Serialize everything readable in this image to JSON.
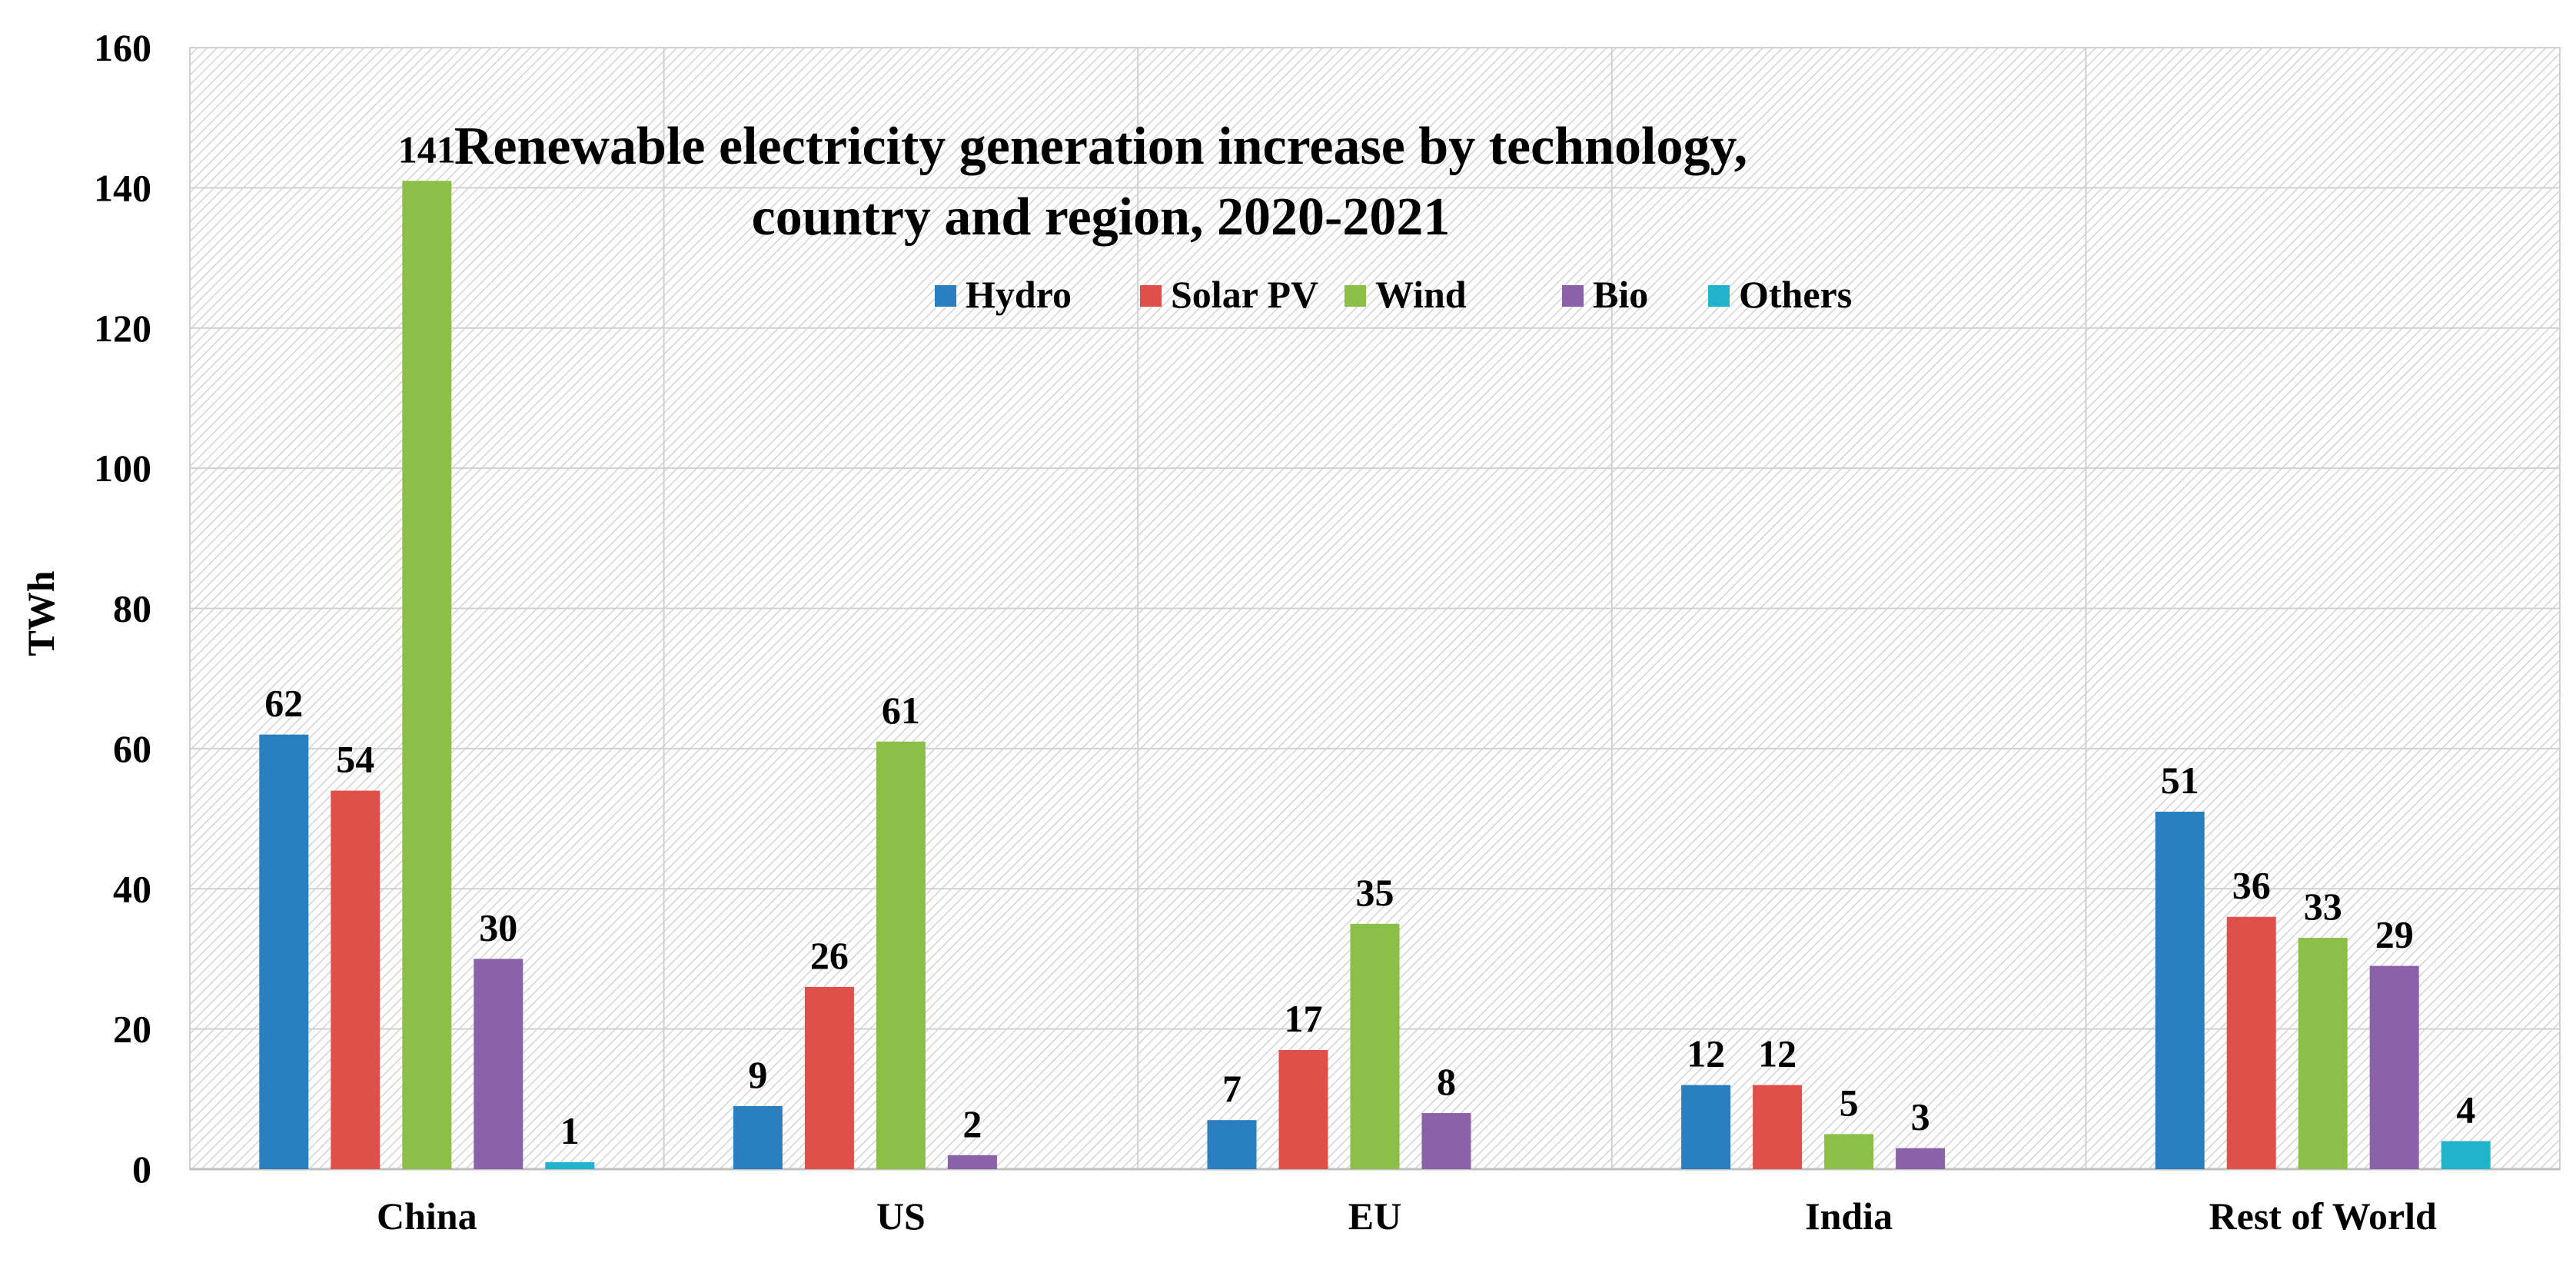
{
  "chart_data": {
    "type": "bar",
    "title_lines": [
      "Renewable electricity generation increase by technology,",
      "country and region, 2020-2021"
    ],
    "xlabel": "",
    "ylabel": "TWh",
    "ylim": [
      0,
      160
    ],
    "yticks": [
      0,
      20,
      40,
      60,
      80,
      100,
      120,
      140,
      160
    ],
    "grid": true,
    "legend_position": "top-center",
    "categories": [
      "China",
      "US",
      "EU",
      "India",
      "Rest of World"
    ],
    "series": [
      {
        "name": "Hydro",
        "color": "#2a7fc1",
        "values": [
          62,
          9,
          7,
          12,
          51
        ]
      },
      {
        "name": "Solar PV",
        "color": "#e0504a",
        "values": [
          54,
          26,
          17,
          12,
          36
        ]
      },
      {
        "name": "Wind",
        "color": "#8cbf47",
        "values": [
          141,
          61,
          35,
          5,
          33
        ]
      },
      {
        "name": "Bio",
        "color": "#8b62aa",
        "values": [
          30,
          2,
          8,
          3,
          29
        ]
      },
      {
        "name": "Others",
        "color": "#22b3cc",
        "values": [
          1,
          null,
          null,
          null,
          4
        ]
      }
    ]
  }
}
